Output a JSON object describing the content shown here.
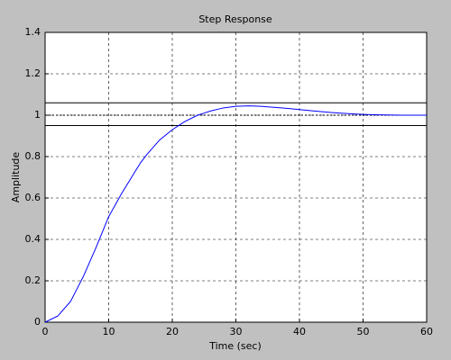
{
  "chart_data": {
    "type": "line",
    "title": "Step Response",
    "xlabel": "Time (sec)",
    "ylabel": "Amplitude",
    "x": [
      0,
      2,
      4,
      5,
      6,
      8,
      10,
      12,
      14,
      15,
      16,
      18,
      20,
      22,
      24,
      25,
      26,
      28,
      30,
      32,
      34,
      35,
      36,
      38,
      40,
      42,
      44,
      45,
      46,
      48,
      50,
      52,
      54,
      56,
      58,
      60
    ],
    "series": [
      {
        "color": "#0000ff",
        "values": [
          0,
          0.03,
          0.1,
          0.16,
          0.22,
          0.36,
          0.51,
          0.62,
          0.72,
          0.77,
          0.81,
          0.88,
          0.93,
          0.97,
          1.0,
          1.01,
          1.02,
          1.035,
          1.043,
          1.045,
          1.043,
          1.04,
          1.038,
          1.033,
          1.027,
          1.021,
          1.016,
          1.013,
          1.011,
          1.007,
          1.004,
          1.002,
          1.001,
          1.0,
          1.0,
          1.0
        ]
      }
    ],
    "hlines": [
      {
        "value": 1.06,
        "style": "solid"
      },
      {
        "value": 1,
        "style": "dotted"
      },
      {
        "value": 0.95,
        "style": "solid"
      }
    ],
    "xlim": [
      0,
      60
    ],
    "ylim": [
      0,
      1.4
    ],
    "xticks": [
      0,
      10,
      20,
      30,
      40,
      50,
      60
    ],
    "yticks": [
      0,
      0.2,
      0.4,
      0.6,
      0.8,
      1,
      1.2,
      1.4
    ],
    "grid": true
  }
}
